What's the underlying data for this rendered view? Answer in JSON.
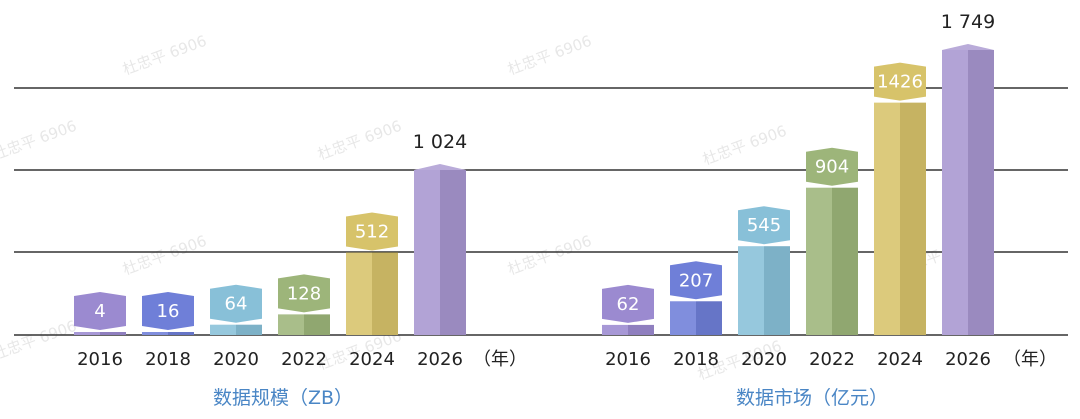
{
  "chart_data": [
    {
      "type": "bar",
      "categories": [
        "2016",
        "2018",
        "2020",
        "2022",
        "2024",
        "2026"
      ],
      "values": [
        4,
        16,
        64,
        128,
        512,
        1024
      ],
      "value_labels": [
        "4",
        "16",
        "64",
        "128",
        "512",
        "1 024"
      ],
      "xlabel": "数据规模（ZB）",
      "unit_label": "（年）",
      "colors": [
        "#9b8ad0",
        "#6f7fd8",
        "#88c0d8",
        "#9db57a",
        "#d7c36a",
        "#a796d0"
      ]
    },
    {
      "type": "bar",
      "categories": [
        "2016",
        "2018",
        "2020",
        "2022",
        "2024",
        "2026"
      ],
      "values": [
        62,
        207,
        545,
        904,
        1426,
        1749
      ],
      "value_labels": [
        "62",
        "207",
        "545",
        "904",
        "1426",
        "1 749"
      ],
      "xlabel": "数据市场（亿元）",
      "unit_label": "（年）",
      "colors": [
        "#9b8ad0",
        "#6f7fd8",
        "#88c0d8",
        "#9db57a",
        "#d7c36a",
        "#a796d0"
      ]
    }
  ],
  "watermark": "杜忠平 6906"
}
